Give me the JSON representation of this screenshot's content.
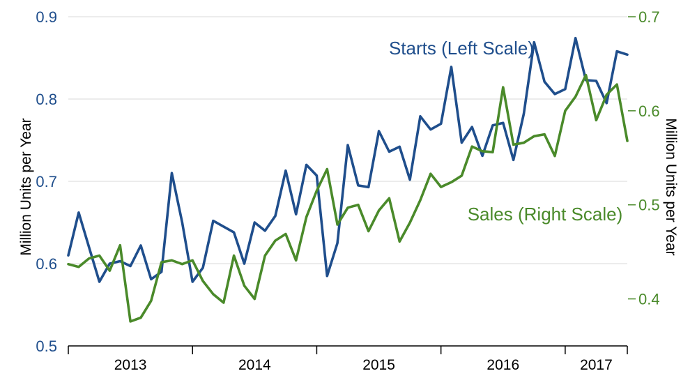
{
  "chart_data": {
    "type": "line",
    "left_axis": {
      "label": "Million Units per Year",
      "ylim": [
        0.5,
        0.9
      ],
      "ticks": [
        "0.5",
        "0.6",
        "0.7",
        "0.8",
        "0.9"
      ],
      "color": "#1f4e8c"
    },
    "right_axis": {
      "label": "Million Units per Year",
      "ylim": [
        0.35,
        0.7
      ],
      "ticks": [
        "0.4",
        "0.5",
        "0.6",
        "0.7"
      ],
      "color": "#4a8a2a"
    },
    "x_labels": [
      "2013",
      "2014",
      "2015",
      "2016",
      "2017"
    ],
    "series": [
      {
        "name": "Starts (Left Scale)",
        "axis": "left",
        "color": "#1f4e8c",
        "values": [
          0.61,
          0.662,
          0.62,
          0.578,
          0.6,
          0.603,
          0.597,
          0.622,
          0.581,
          0.59,
          0.71,
          0.65,
          0.578,
          0.595,
          0.652,
          0.645,
          0.638,
          0.6,
          0.65,
          0.64,
          0.658,
          0.713,
          0.66,
          0.72,
          0.707,
          0.585,
          0.625,
          0.744,
          0.695,
          0.693,
          0.761,
          0.736,
          0.742,
          0.702,
          0.779,
          0.763,
          0.77,
          0.839,
          0.747,
          0.766,
          0.731,
          0.768,
          0.771,
          0.726,
          0.782,
          0.869,
          0.821,
          0.806,
          0.812,
          0.874,
          0.823,
          0.822,
          0.795,
          0.858,
          0.854
        ]
      },
      {
        "name": "Sales (Right Scale)",
        "axis": "right",
        "color": "#4a8a2a",
        "values": [
          0.437,
          0.434,
          0.443,
          0.446,
          0.43,
          0.457,
          0.376,
          0.38,
          0.398,
          0.439,
          0.441,
          0.437,
          0.441,
          0.419,
          0.405,
          0.396,
          0.446,
          0.414,
          0.4,
          0.446,
          0.462,
          0.469,
          0.441,
          0.487,
          0.515,
          0.538,
          0.479,
          0.497,
          0.5,
          0.472,
          0.494,
          0.507,
          0.461,
          0.481,
          0.505,
          0.533,
          0.519,
          0.524,
          0.531,
          0.562,
          0.557,
          0.556,
          0.625,
          0.564,
          0.566,
          0.573,
          0.575,
          0.552,
          0.6,
          0.615,
          0.638,
          0.59,
          0.617,
          0.628,
          0.568
        ]
      }
    ]
  }
}
